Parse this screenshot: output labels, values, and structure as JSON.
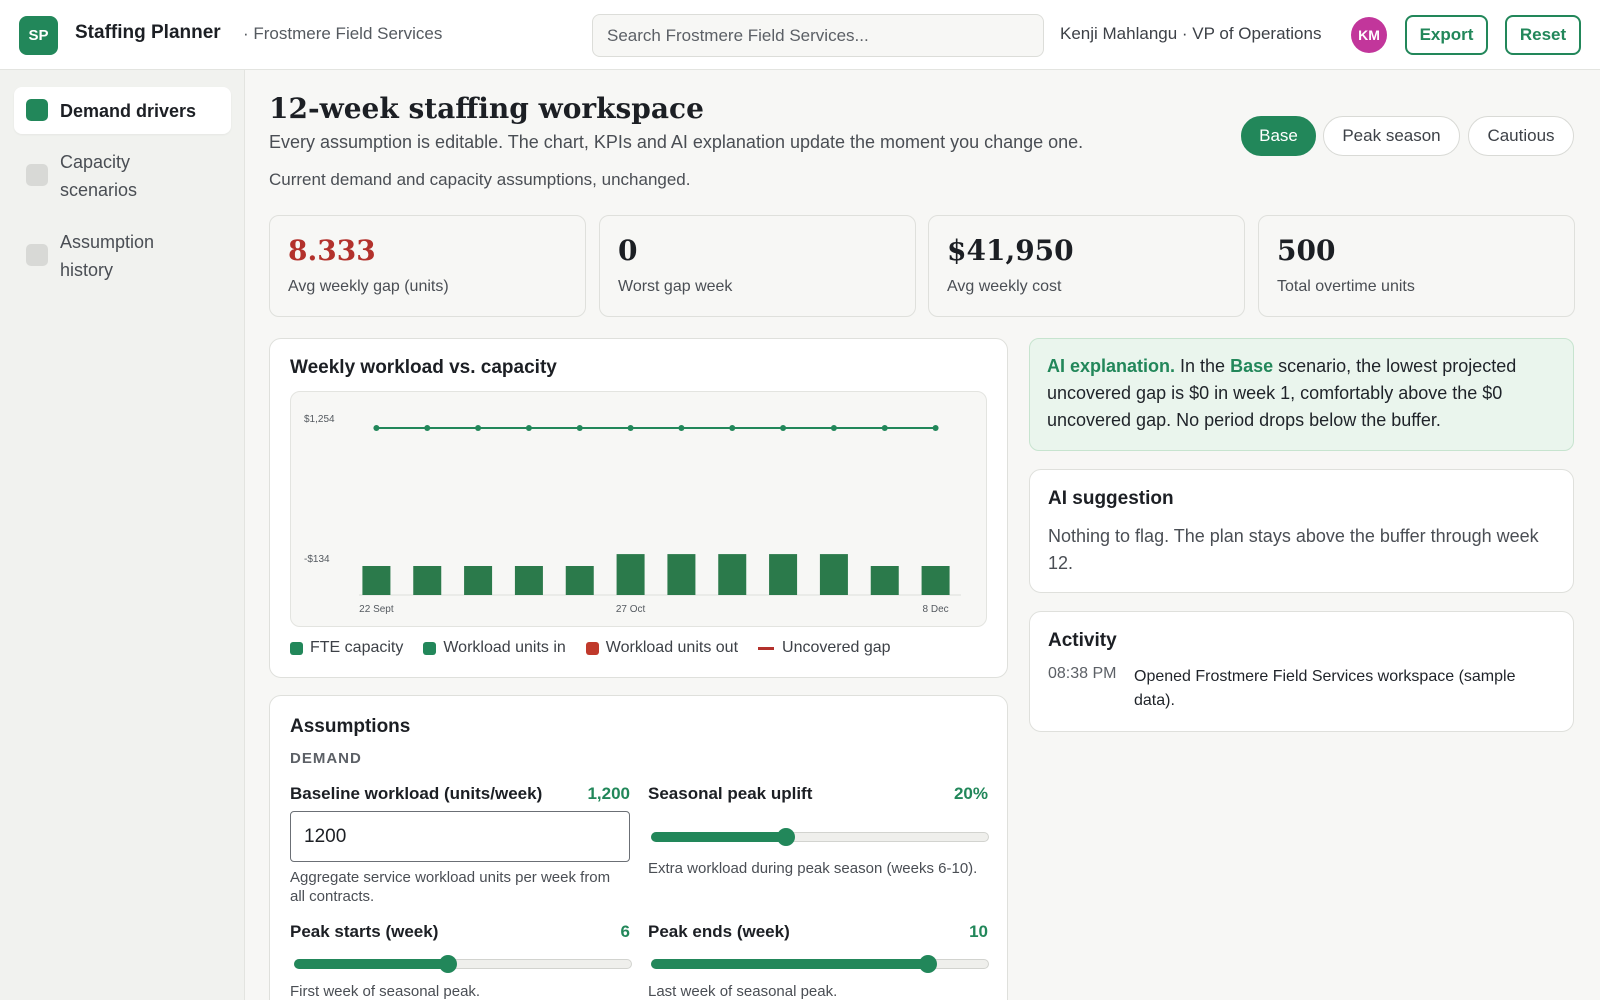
{
  "app": {
    "logo": "SP",
    "name": "Staffing Planner",
    "org": "· Frostmere Field Services",
    "search_placeholder": "Search Frostmere Field Services...",
    "user": "Kenji Mahlangu · VP of Operations",
    "avatar": "KM",
    "export_label": "Export",
    "reset_label": "Reset"
  },
  "sidebar": {
    "items": [
      {
        "label": "Demand drivers",
        "active": true
      },
      {
        "label": "Capacity scenarios",
        "active": false
      },
      {
        "label": "Assumption history",
        "active": false
      }
    ]
  },
  "header": {
    "title": "12-week staffing workspace",
    "subtitle": "Every assumption is editable. The chart, KPIs and AI explanation update the moment you change one.",
    "status": "Current demand and capacity assumptions, unchanged.",
    "scenarios": [
      {
        "label": "Base",
        "active": true
      },
      {
        "label": "Peak season",
        "active": false
      },
      {
        "label": "Cautious",
        "active": false
      }
    ]
  },
  "kpis": [
    {
      "value": "8.333",
      "label": "Avg weekly gap (units)"
    },
    {
      "value": "0",
      "label": "Worst gap week"
    },
    {
      "value": "$41,950",
      "label": "Avg weekly cost"
    },
    {
      "value": "500",
      "label": "Total overtime units"
    }
  ],
  "chart": {
    "title": "Weekly workload vs. capacity",
    "legend": [
      {
        "label": "FTE capacity",
        "color": "#22875a"
      },
      {
        "label": "Workload units in",
        "color": "#22875a"
      },
      {
        "label": "Workload units out",
        "color": "#c0392b"
      },
      {
        "label": "Uncovered gap",
        "color": "#b3312c"
      }
    ]
  },
  "chart_data": {
    "type": "bar",
    "title": "Weekly workload vs. capacity",
    "xlabel": "",
    "ylabel": "",
    "y_tick_labels": [
      "$1,254",
      "-$134"
    ],
    "x_tick_labels": [
      "22 Sept",
      "27 Oct",
      "8 Dec"
    ],
    "ylim": [
      -790,
      1254
    ],
    "grid": false,
    "legend_placement": "bottom",
    "series": [
      {
        "name": "FTE capacity",
        "type": "line",
        "values": [
          1254,
          1254,
          1254,
          1254,
          1254,
          1254,
          1254,
          1254,
          1254,
          1254,
          1254,
          1254
        ]
      },
      {
        "name": "Workload units in",
        "type": "bar",
        "values": [
          -134,
          -134,
          -134,
          -134,
          -134,
          -189,
          -189,
          -189,
          -189,
          -189,
          -134,
          -134
        ]
      }
    ],
    "categories": [
      "w1",
      "w2",
      "w3",
      "w4",
      "w5",
      "w6",
      "w7",
      "w8",
      "w9",
      "w10",
      "w11",
      "w12"
    ]
  },
  "ai": {
    "lead": "AI explanation.",
    "pre": " In the ",
    "scenario": "Base",
    "body": " scenario, the lowest projected uncovered gap is $0 in week 1, comfortably above the $0 uncovered gap. No period drops below the buffer."
  },
  "suggestion": {
    "title": "AI suggestion",
    "text": "Nothing to flag. The plan stays above the buffer through week 12."
  },
  "activity": {
    "title": "Activity",
    "time": "08:38 PM",
    "text": "Opened Frostmere Field Services workspace (sample data)."
  },
  "assumptions": {
    "title": "Assumptions",
    "section": "DEMAND",
    "baseline": {
      "label": "Baseline workload (units/week)",
      "value": "1,200",
      "input": "1200",
      "help": "Aggregate service workload units per week from all contracts."
    },
    "uplift": {
      "label": "Seasonal peak uplift",
      "value": "20%",
      "fraction": 0.4,
      "help": "Extra workload during peak season (weeks 6-10)."
    },
    "peak_start": {
      "label": "Peak starts (week)",
      "value": "6",
      "fraction": 0.4545,
      "help": "First week of seasonal peak."
    },
    "peak_end": {
      "label": "Peak ends (week)",
      "value": "10",
      "fraction": 0.8182,
      "help": "Last week of seasonal peak."
    }
  }
}
